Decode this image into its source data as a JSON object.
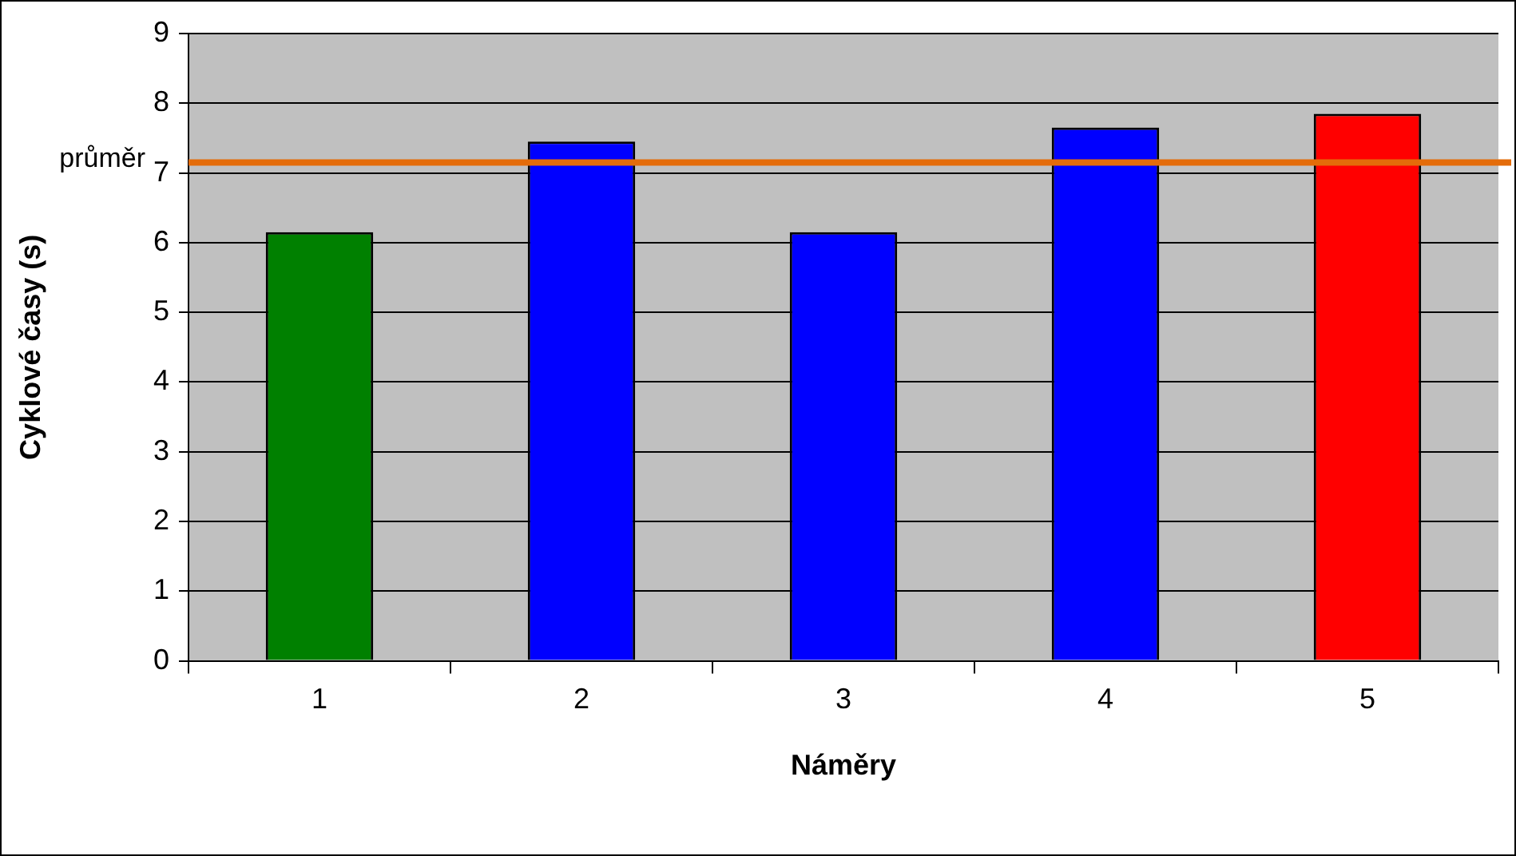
{
  "chart_data": {
    "type": "bar",
    "xlabel": "Náměry",
    "ylabel": "Cyklové časy (s)",
    "categories": [
      "1",
      "2",
      "3",
      "4",
      "5"
    ],
    "values": [
      6.15,
      7.45,
      6.15,
      7.65,
      7.85
    ],
    "colors": [
      "#008000",
      "#0000ff",
      "#0000ff",
      "#0000ff",
      "#ff0000"
    ],
    "ylim": [
      0,
      9
    ],
    "yticks": [
      0,
      1,
      2,
      3,
      4,
      5,
      6,
      7,
      8,
      9
    ],
    "grid": "y",
    "ref_lines": [
      {
        "axis": "y",
        "value": 7.15,
        "label": "průměr",
        "color": "#e46c0a"
      }
    ]
  }
}
